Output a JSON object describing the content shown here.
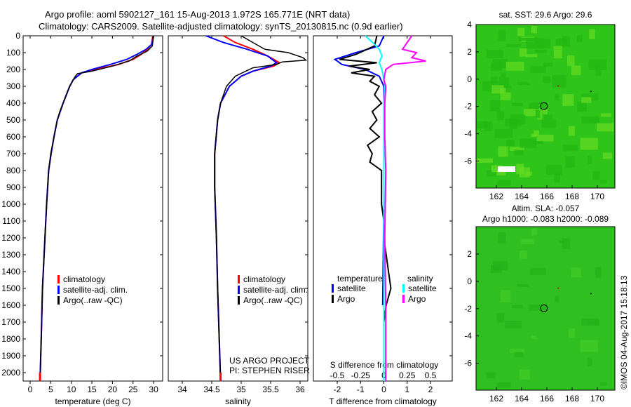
{
  "title_line1": "Argo profile: aoml 5902127_161 15-Aug-2013 1.972S 165.771E (NRT data)",
  "title_line2": "Climatology: CARS2009. Satellite-adjusted climatology: synTS_20130815.nc (0.9d earlier)",
  "credit": "US ARGO PROJECT",
  "pi": "PI: STEPHEN RISER",
  "copyright": "©IMOS 04-Aug-2017 15:18:13",
  "colors": {
    "climatology": "#ff0000",
    "satellite": "#0000ff",
    "argo": "#000000",
    "sal_satellite": "#00ffff",
    "sal_argo": "#ff00ff",
    "map": "#33cc1a"
  },
  "chart_data": [
    {
      "type": "line",
      "xlabel": "temperature (deg C)",
      "ylabel": "depth",
      "xlim": [
        -2,
        31
      ],
      "ylim": [
        0,
        2050
      ],
      "xticks": [
        0,
        5,
        10,
        15,
        20,
        25,
        30
      ],
      "yticks": [
        0,
        100,
        200,
        300,
        400,
        500,
        600,
        700,
        800,
        900,
        1000,
        1100,
        1200,
        1300,
        1400,
        1500,
        1600,
        1700,
        1800,
        1900,
        2000
      ],
      "legend": [
        "climatology",
        "satellite-adj. clim.",
        "Argo(..raw -QC)"
      ],
      "series": [
        {
          "name": "climatology",
          "depth": [
            0,
            50,
            80,
            110,
            140,
            170,
            200,
            220,
            260,
            300,
            400,
            500,
            600,
            700,
            800,
            1000,
            1200,
            1500,
            1800,
            2050
          ],
          "values": [
            29.8,
            29.5,
            28.5,
            27,
            25,
            21.5,
            16,
            12.5,
            10.5,
            9.6,
            8,
            6.6,
            5.8,
            5.1,
            4.5,
            4,
            3.6,
            3,
            2.7,
            2.4
          ]
        },
        {
          "name": "satellite-adj. clim.",
          "depth": [
            0,
            50,
            80,
            110,
            140,
            170,
            200,
            220,
            260,
            300,
            400,
            500,
            600,
            700,
            800,
            1000,
            1200,
            1500,
            1800,
            2050
          ],
          "values": [
            29.9,
            29.6,
            28.2,
            26,
            23.5,
            19.5,
            15,
            12.5,
            10.5,
            9.6,
            8,
            6.6,
            5.8,
            5.1,
            4.5,
            4,
            3.6,
            3,
            2.7,
            2.4
          ]
        },
        {
          "name": "Argo(..raw -QC)",
          "depth": [
            0,
            60,
            90,
            120,
            150,
            180,
            210,
            225,
            240,
            260,
            300,
            400,
            450,
            500,
            600,
            700,
            800,
            1000,
            1200,
            1500,
            1800,
            2050
          ],
          "values": [
            30,
            29.7,
            28.5,
            26,
            24,
            20,
            15,
            11.5,
            11,
            10.5,
            9.6,
            8,
            7.2,
            6.6,
            5.8,
            5,
            4.5,
            4,
            3.6,
            3,
            2.7,
            2.4
          ]
        }
      ]
    },
    {
      "type": "line",
      "xlabel": "salinity",
      "xlim": [
        33.6,
        36.2
      ],
      "ylim": [
        0,
        2050
      ],
      "xticks": [
        34,
        34.5,
        35,
        35.5,
        36
      ],
      "legend": [
        "climatology",
        "satellite-adj. clim.",
        "Argo(..raw -QC)"
      ],
      "series": [
        {
          "name": "climatology",
          "depth": [
            0,
            40,
            80,
            120,
            160,
            180,
            210,
            240,
            300,
            400,
            500,
            700,
            900,
            1200,
            1500,
            2050
          ],
          "values": [
            34.7,
            34.9,
            35.2,
            35.45,
            35.65,
            35.55,
            35.2,
            35,
            34.8,
            34.65,
            34.6,
            34.55,
            34.55,
            34.58,
            34.6,
            34.65
          ]
        },
        {
          "name": "satellite-adj. clim.",
          "depth": [
            0,
            40,
            80,
            120,
            160,
            180,
            210,
            240,
            300,
            400,
            500,
            700,
            900,
            1200,
            1500,
            2050
          ],
          "values": [
            34.4,
            34.7,
            35.1,
            35.45,
            35.6,
            35.5,
            35.2,
            35,
            34.8,
            34.65,
            34.6,
            34.55,
            34.55,
            34.58,
            34.6,
            34.65
          ]
        },
        {
          "name": "Argo(..raw -QC)",
          "depth": [
            0,
            40,
            80,
            100,
            130,
            145,
            155,
            170,
            190,
            215,
            240,
            300,
            400,
            500,
            700,
            900,
            1200,
            1500,
            2050
          ],
          "values": [
            35,
            35.2,
            35.4,
            35.8,
            36.05,
            36.1,
            35.7,
            35.6,
            35.2,
            35.05,
            34.9,
            34.75,
            34.65,
            34.6,
            34.55,
            34.55,
            34.58,
            34.6,
            34.65
          ]
        }
      ]
    },
    {
      "type": "line",
      "xlabel": "T difference from climatology",
      "x2label": "S difference from climatology",
      "xlim": [
        -3,
        3
      ],
      "ylim": [
        0,
        2050
      ],
      "xticks": [
        -2,
        -1,
        0,
        1,
        2
      ],
      "x2ticks": [
        -0.5,
        -0.25,
        0,
        0.25,
        0.5
      ],
      "legend_t": {
        "title": "temperature",
        "items": [
          "satellite",
          "Argo"
        ]
      },
      "legend_s": {
        "title": "salinity",
        "items": [
          "satellite",
          "Argo"
        ]
      },
      "series": [
        {
          "name": "T satellite",
          "depth": [
            0,
            60,
            100,
            140,
            170,
            200,
            240,
            300,
            400,
            1000,
            1600
          ],
          "values": [
            0,
            -0.2,
            -1.2,
            -2.1,
            -1.8,
            -0.8,
            -0.2,
            0,
            0,
            0,
            -0.05
          ]
        },
        {
          "name": "T Argo",
          "depth": [
            0,
            60,
            110,
            140,
            160,
            180,
            200,
            220,
            240,
            270,
            300,
            350,
            400,
            450,
            500,
            550,
            600,
            650,
            700,
            750,
            800,
            900,
            1000,
            1100,
            1200,
            1300,
            1400,
            1500,
            1550,
            1600,
            1700,
            2050
          ],
          "values": [
            -0.3,
            -0.4,
            -1.2,
            -1.9,
            -0.3,
            -1.5,
            -0.6,
            -1.4,
            -0.4,
            -0.6,
            -0.2,
            -0.4,
            -0.1,
            -0.5,
            -0.3,
            -0.6,
            -0.2,
            -0.7,
            -0.5,
            -0.6,
            -0.1,
            -0.1,
            -0.1,
            0,
            0,
            0.1,
            0.2,
            0.3,
            0.2,
            0.1,
            0,
            0
          ]
        },
        {
          "name": "S satellite",
          "depth": [
            0,
            40,
            80,
            120,
            160,
            200,
            260,
            300,
            400,
            600,
            800,
            1200,
            2050
          ],
          "values": [
            -0.2,
            -0.12,
            -0.05,
            -0.02,
            -0.05,
            -0.02,
            0,
            0.01,
            0,
            0,
            0,
            0,
            0
          ]
        },
        {
          "name": "S Argo",
          "depth": [
            0,
            40,
            80,
            100,
            130,
            150,
            170,
            200,
            260,
            300,
            400,
            600,
            800,
            1200,
            1600,
            2050
          ],
          "values": [
            0.3,
            0.25,
            0.2,
            0.35,
            0.3,
            0.45,
            0.1,
            0.02,
            0,
            0.02,
            0.01,
            0.01,
            0.02,
            0.01,
            0.02,
            0.02
          ]
        }
      ]
    },
    {
      "type": "heatmap",
      "title": "sat. SST: 29.6 Argo: 29.6",
      "xlim": [
        160.8,
        171
      ],
      "ylim": [
        -7.9,
        4
      ],
      "xticks": [
        162,
        164,
        166,
        168,
        170
      ],
      "yticks": [
        4,
        2,
        0,
        -2,
        -4,
        -6
      ],
      "marker": [
        165.77,
        -1.97
      ]
    },
    {
      "type": "heatmap",
      "title": "Altim. SLA: -0.057",
      "title2": "Argo h1000: -0.083 h2000: -0.089",
      "xlim": [
        160.8,
        171
      ],
      "ylim": [
        -7.9,
        4
      ],
      "xticks": [
        162,
        164,
        166,
        168,
        170
      ],
      "yticks": [
        2,
        0,
        -2,
        -4,
        -6
      ],
      "marker": [
        165.77,
        -1.97
      ]
    }
  ]
}
